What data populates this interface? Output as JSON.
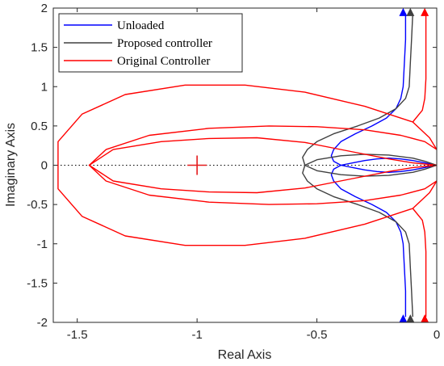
{
  "chart_data": {
    "type": "line",
    "title": "",
    "xlabel": "Real Axis",
    "ylabel": "Imaginary Axis",
    "xlim": [
      -1.6,
      0
    ],
    "ylim": [
      -2,
      2
    ],
    "xticks": [
      -1.5,
      -1,
      -0.5,
      0
    ],
    "xtick_labels": [
      "-1.5",
      "-1",
      "-0.5",
      "0"
    ],
    "yticks": [
      -2,
      -1.5,
      -1,
      -0.5,
      0,
      0.5,
      1,
      1.5,
      2
    ],
    "ytick_labels": [
      "-2",
      "-1.5",
      "-1",
      "-0.5",
      "0",
      "0.5",
      "1",
      "1.5",
      "2"
    ],
    "grid": false,
    "legend_position": "top-left",
    "critical_point": {
      "x": -1,
      "y": 0,
      "color": "#e41a1c"
    },
    "real_axis_line": {
      "style": "dotted",
      "color": "#000000"
    },
    "series": [
      {
        "name": "Unloaded",
        "color": "#0000ff",
        "paths": [
          [
            [
              0,
              0
            ],
            [
              -0.05,
              0.03
            ],
            [
              -0.1,
              0.06
            ],
            [
              -0.15,
              0.08
            ],
            [
              -0.2,
              0.09
            ],
            [
              -0.25,
              0.08
            ],
            [
              -0.3,
              0.06
            ],
            [
              -0.35,
              0.03
            ],
            [
              -0.4,
              0.0
            ],
            [
              -0.43,
              -0.05
            ],
            [
              -0.44,
              -0.12
            ],
            [
              -0.43,
              -0.2
            ],
            [
              -0.4,
              -0.3
            ],
            [
              -0.34,
              -0.4
            ],
            [
              -0.27,
              -0.5
            ],
            [
              -0.21,
              -0.6
            ],
            [
              -0.17,
              -0.72
            ],
            [
              -0.15,
              -0.85
            ],
            [
              -0.14,
              -1.0
            ],
            [
              -0.135,
              -1.3
            ],
            [
              -0.13,
              -1.6
            ],
            [
              -0.13,
              -1.93
            ]
          ],
          [
            [
              0,
              0
            ],
            [
              -0.05,
              -0.03
            ],
            [
              -0.1,
              -0.06
            ],
            [
              -0.15,
              -0.08
            ],
            [
              -0.2,
              -0.09
            ],
            [
              -0.25,
              -0.08
            ],
            [
              -0.3,
              -0.06
            ],
            [
              -0.35,
              -0.03
            ],
            [
              -0.4,
              0.0
            ],
            [
              -0.43,
              0.05
            ],
            [
              -0.44,
              0.12
            ],
            [
              -0.43,
              0.2
            ],
            [
              -0.4,
              0.3
            ],
            [
              -0.34,
              0.4
            ],
            [
              -0.27,
              0.5
            ],
            [
              -0.21,
              0.6
            ],
            [
              -0.17,
              0.72
            ],
            [
              -0.15,
              0.85
            ],
            [
              -0.14,
              1.0
            ],
            [
              -0.135,
              1.3
            ],
            [
              -0.13,
              1.6
            ],
            [
              -0.13,
              1.93
            ]
          ]
        ]
      },
      {
        "name": "Proposed controller",
        "color": "#404040",
        "paths": [
          [
            [
              0,
              0
            ],
            [
              -0.05,
              0.05
            ],
            [
              -0.1,
              0.09
            ],
            [
              -0.2,
              0.13
            ],
            [
              -0.3,
              0.14
            ],
            [
              -0.4,
              0.12
            ],
            [
              -0.5,
              0.07
            ],
            [
              -0.55,
              0.0
            ],
            [
              -0.56,
              -0.1
            ],
            [
              -0.54,
              -0.2
            ],
            [
              -0.5,
              -0.3
            ],
            [
              -0.43,
              -0.4
            ],
            [
              -0.33,
              -0.5
            ],
            [
              -0.24,
              -0.6
            ],
            [
              -0.17,
              -0.72
            ],
            [
              -0.13,
              -0.85
            ],
            [
              -0.115,
              -1.0
            ],
            [
              -0.11,
              -1.3
            ],
            [
              -0.105,
              -1.6
            ],
            [
              -0.1,
              -1.93
            ]
          ],
          [
            [
              0,
              0
            ],
            [
              -0.05,
              -0.05
            ],
            [
              -0.1,
              -0.09
            ],
            [
              -0.2,
              -0.13
            ],
            [
              -0.3,
              -0.14
            ],
            [
              -0.4,
              -0.12
            ],
            [
              -0.5,
              -0.07
            ],
            [
              -0.55,
              0.0
            ],
            [
              -0.56,
              0.1
            ],
            [
              -0.54,
              0.2
            ],
            [
              -0.5,
              0.3
            ],
            [
              -0.43,
              0.4
            ],
            [
              -0.33,
              0.5
            ],
            [
              -0.24,
              0.6
            ],
            [
              -0.17,
              0.72
            ],
            [
              -0.13,
              0.85
            ],
            [
              -0.115,
              1.0
            ],
            [
              -0.11,
              1.3
            ],
            [
              -0.105,
              1.6
            ],
            [
              -0.1,
              1.93
            ]
          ]
        ]
      },
      {
        "name": "Original Controller",
        "color": "#ff0000",
        "paths": [
          [
            [
              0,
              0
            ],
            [
              -0.1,
              0.03
            ],
            [
              -0.2,
              0.08
            ],
            [
              -0.35,
              0.17
            ],
            [
              -0.55,
              0.29
            ],
            [
              -0.75,
              0.35
            ],
            [
              -0.95,
              0.34
            ],
            [
              -1.15,
              0.3
            ],
            [
              -1.35,
              0.2
            ],
            [
              -1.45,
              0.0
            ],
            [
              -1.38,
              -0.2
            ],
            [
              -1.2,
              -0.38
            ],
            [
              -0.95,
              -0.47
            ],
            [
              -0.7,
              -0.5
            ],
            [
              -0.5,
              -0.49
            ],
            [
              -0.3,
              -0.45
            ],
            [
              -0.15,
              -0.38
            ],
            [
              -0.05,
              -0.3
            ],
            [
              0,
              -0.2
            ]
          ],
          [
            [
              0,
              0
            ],
            [
              -0.1,
              -0.03
            ],
            [
              -0.2,
              -0.08
            ],
            [
              -0.35,
              -0.17
            ],
            [
              -0.55,
              -0.29
            ],
            [
              -0.75,
              -0.35
            ],
            [
              -0.95,
              -0.34
            ],
            [
              -1.15,
              -0.3
            ],
            [
              -1.35,
              -0.2
            ],
            [
              -1.45,
              0.0
            ],
            [
              -1.38,
              0.2
            ],
            [
              -1.2,
              0.38
            ],
            [
              -0.95,
              0.47
            ],
            [
              -0.7,
              0.5
            ],
            [
              -0.5,
              0.49
            ],
            [
              -0.3,
              0.45
            ],
            [
              -0.15,
              0.38
            ],
            [
              -0.05,
              0.3
            ],
            [
              0,
              0.2
            ]
          ],
          [
            [
              0,
              0.2
            ],
            [
              -0.03,
              0.35
            ],
            [
              -0.1,
              0.55
            ],
            [
              -0.3,
              0.75
            ],
            [
              -0.55,
              0.93
            ],
            [
              -0.8,
              1.02
            ],
            [
              -1.05,
              1.02
            ],
            [
              -1.3,
              0.9
            ],
            [
              -1.48,
              0.65
            ],
            [
              -1.58,
              0.3
            ],
            [
              -1.58,
              -0.3
            ],
            [
              -1.48,
              -0.65
            ],
            [
              -1.3,
              -0.9
            ],
            [
              -1.05,
              -1.02
            ],
            [
              -0.8,
              -1.02
            ],
            [
              -0.55,
              -0.93
            ],
            [
              -0.3,
              -0.75
            ],
            [
              -0.1,
              -0.55
            ],
            [
              -0.03,
              -0.35
            ],
            [
              0,
              -0.2
            ]
          ],
          [
            [
              -0.1,
              -0.55
            ],
            [
              -0.06,
              -0.7
            ],
            [
              -0.05,
              -0.85
            ],
            [
              -0.045,
              -1.1
            ],
            [
              -0.045,
              -1.5
            ],
            [
              -0.045,
              -1.93
            ]
          ],
          [
            [
              -0.1,
              0.55
            ],
            [
              -0.06,
              0.7
            ],
            [
              -0.05,
              0.85
            ],
            [
              -0.045,
              1.1
            ],
            [
              -0.045,
              1.5
            ],
            [
              -0.045,
              1.93
            ]
          ]
        ]
      }
    ],
    "arrow_markers": [
      {
        "series": "Unloaded",
        "x": -0.14,
        "y": 1.95,
        "direction": "up"
      },
      {
        "series": "Proposed controller",
        "x": -0.11,
        "y": 1.95,
        "direction": "up"
      },
      {
        "series": "Original Controller",
        "x": -0.05,
        "y": 1.95,
        "direction": "up"
      },
      {
        "series": "Unloaded",
        "x": -0.14,
        "y": -1.95,
        "direction": "up"
      },
      {
        "series": "Proposed controller",
        "x": -0.11,
        "y": -1.95,
        "direction": "up"
      },
      {
        "series": "Original Controller",
        "x": -0.05,
        "y": -1.95,
        "direction": "up"
      }
    ]
  }
}
